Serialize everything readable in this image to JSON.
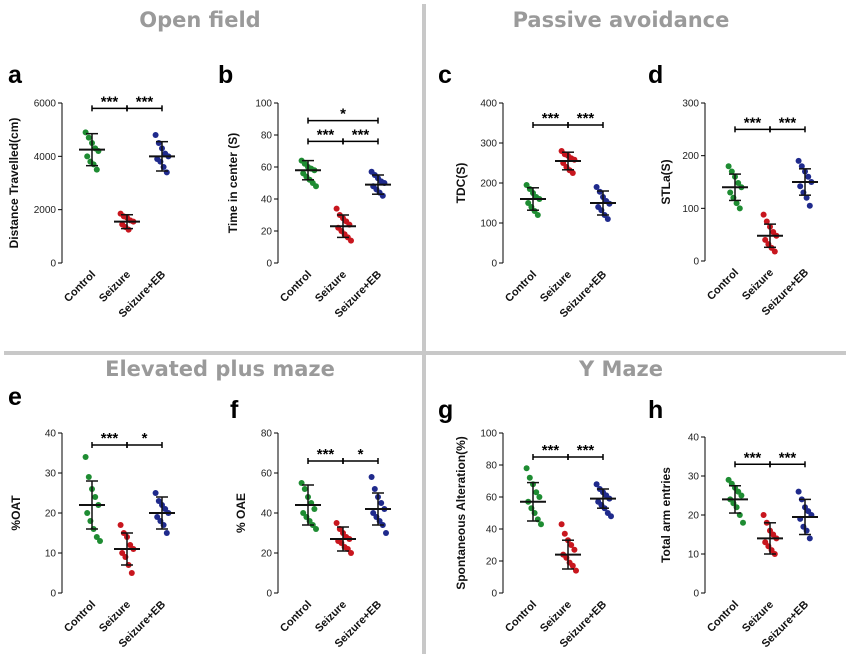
{
  "sections": [
    {
      "title": "Open field"
    },
    {
      "title": "Passive avoidance"
    },
    {
      "title": "Elevated plus maze"
    },
    {
      "title": "Y Maze"
    }
  ],
  "colors": {
    "Control": "#1e8c32",
    "Seizure": "#c8161e",
    "Seizure+EB": "#1f2a8c",
    "divider": "#c8c8c8"
  },
  "chart_data": [
    {
      "type": "scatter",
      "panel": "a",
      "ylabel": "Distance Travelled(cm)",
      "ylim": [
        0,
        6000
      ],
      "yticks": [
        0,
        2000,
        4000,
        6000
      ],
      "categories": [
        "Control",
        "Seizure",
        "Seizure+EB"
      ],
      "series": [
        {
          "name": "Control",
          "points": [
            4900,
            4700,
            4500,
            4300,
            4200,
            4000,
            3800,
            3700,
            3500
          ],
          "mean": 4250,
          "sd": 600
        },
        {
          "name": "Seizure",
          "points": [
            1850,
            1750,
            1700,
            1600,
            1550,
            1450,
            1350,
            1250
          ],
          "mean": 1550,
          "sd": 260
        },
        {
          "name": "Seizure+EB",
          "points": [
            4800,
            4500,
            4300,
            4100,
            4000,
            3900,
            3800,
            3600,
            3400
          ],
          "mean": 4000,
          "sd": 550
        }
      ],
      "significance": [
        {
          "from": 0,
          "to": 1,
          "label": "***",
          "y": 5800
        },
        {
          "from": 1,
          "to": 2,
          "label": "***",
          "y": 5800
        }
      ]
    },
    {
      "type": "scatter",
      "panel": "b",
      "ylabel": "Time in center (S)",
      "ylim": [
        0,
        100
      ],
      "yticks": [
        0,
        20,
        40,
        60,
        80,
        100
      ],
      "categories": [
        "Control",
        "Seizure",
        "Seizure+EB"
      ],
      "series": [
        {
          "name": "Control",
          "points": [
            64,
            62,
            60,
            59,
            58,
            56,
            54,
            52,
            50,
            48
          ],
          "mean": 58,
          "sd": 6
        },
        {
          "name": "Seizure",
          "points": [
            34,
            30,
            28,
            26,
            24,
            22,
            20,
            18,
            16,
            14
          ],
          "mean": 23,
          "sd": 7
        },
        {
          "name": "Seizure+EB",
          "points": [
            57,
            55,
            53,
            51,
            50,
            48,
            46,
            44,
            42
          ],
          "mean": 49,
          "sd": 6
        }
      ],
      "significance": [
        {
          "from": 0,
          "to": 1,
          "label": "***",
          "y": 76
        },
        {
          "from": 1,
          "to": 2,
          "label": "***",
          "y": 76
        },
        {
          "from": 0,
          "to": 2,
          "label": "*",
          "y": 89
        }
      ]
    },
    {
      "type": "scatter",
      "panel": "c",
      "ylabel": "TDC(S)",
      "ylim": [
        0,
        400
      ],
      "yticks": [
        0,
        100,
        200,
        300,
        400
      ],
      "categories": [
        "Control",
        "Seizure",
        "Seizure+EB"
      ],
      "series": [
        {
          "name": "Control",
          "points": [
            195,
            185,
            175,
            165,
            160,
            150,
            140,
            130,
            120
          ],
          "mean": 160,
          "sd": 28
        },
        {
          "name": "Seizure",
          "points": [
            280,
            272,
            268,
            262,
            258,
            250,
            240,
            232,
            225
          ],
          "mean": 255,
          "sd": 22
        },
        {
          "name": "Seizure+EB",
          "points": [
            190,
            178,
            165,
            155,
            148,
            140,
            132,
            120,
            110
          ],
          "mean": 150,
          "sd": 30
        }
      ],
      "significance": [
        {
          "from": 0,
          "to": 1,
          "label": "***",
          "y": 345
        },
        {
          "from": 1,
          "to": 2,
          "label": "***",
          "y": 345
        }
      ]
    },
    {
      "type": "scatter",
      "panel": "d",
      "ylabel": "STLa(S)",
      "ylim": [
        0,
        300
      ],
      "yticks": [
        0,
        100,
        200,
        300
      ],
      "categories": [
        "Control",
        "Seizure",
        "Seizure+EB"
      ],
      "series": [
        {
          "name": "Control",
          "points": [
            180,
            170,
            160,
            148,
            140,
            130,
            120,
            110,
            100
          ],
          "mean": 140,
          "sd": 25
        },
        {
          "name": "Seizure",
          "points": [
            88,
            75,
            65,
            55,
            48,
            40,
            32,
            25,
            18
          ],
          "mean": 48,
          "sd": 22
        },
        {
          "name": "Seizure+EB",
          "points": [
            190,
            180,
            170,
            160,
            150,
            142,
            130,
            120,
            105
          ],
          "mean": 150,
          "sd": 25
        }
      ],
      "significance": [
        {
          "from": 0,
          "to": 1,
          "label": "***",
          "y": 250
        },
        {
          "from": 1,
          "to": 2,
          "label": "***",
          "y": 250
        }
      ]
    },
    {
      "type": "scatter",
      "panel": "e",
      "ylabel": "%OAT",
      "ylim": [
        0,
        40
      ],
      "yticks": [
        0,
        10,
        20,
        30,
        40
      ],
      "categories": [
        "Control",
        "Seizure",
        "Seizure+EB"
      ],
      "series": [
        {
          "name": "Control",
          "points": [
            34,
            29,
            26,
            24,
            22,
            20,
            18,
            16,
            14,
            13
          ],
          "mean": 22,
          "sd": 6
        },
        {
          "name": "Seizure",
          "points": [
            17,
            15,
            14,
            12,
            11,
            10,
            9,
            7,
            5
          ],
          "mean": 11,
          "sd": 4
        },
        {
          "name": "Seizure+EB",
          "points": [
            25,
            23,
            22,
            21,
            20,
            19,
            18,
            17,
            15
          ],
          "mean": 20,
          "sd": 4
        }
      ],
      "significance": [
        {
          "from": 0,
          "to": 1,
          "label": "***",
          "y": 37
        },
        {
          "from": 1,
          "to": 2,
          "label": "*",
          "y": 37
        }
      ]
    },
    {
      "type": "scatter",
      "panel": "f",
      "ylabel": "% OAE",
      "ylim": [
        0,
        80
      ],
      "yticks": [
        0,
        20,
        40,
        60,
        80
      ],
      "categories": [
        "Control",
        "Seizure",
        "Seizure+EB"
      ],
      "series": [
        {
          "name": "Control",
          "points": [
            55,
            52,
            48,
            45,
            42,
            40,
            38,
            36,
            34,
            32
          ],
          "mean": 44,
          "sd": 10
        },
        {
          "name": "Seizure",
          "points": [
            35,
            32,
            30,
            28,
            27,
            26,
            25,
            23,
            22,
            20
          ],
          "mean": 27,
          "sd": 6
        },
        {
          "name": "Seizure+EB",
          "points": [
            58,
            52,
            48,
            45,
            42,
            40,
            38,
            36,
            34,
            30
          ],
          "mean": 42,
          "sd": 8
        }
      ],
      "significance": [
        {
          "from": 0,
          "to": 1,
          "label": "***",
          "y": 66
        },
        {
          "from": 1,
          "to": 2,
          "label": "*",
          "y": 66
        }
      ]
    },
    {
      "type": "scatter",
      "panel": "g",
      "ylabel": "Spontaneous Alteration(%)",
      "ylim": [
        0,
        100
      ],
      "yticks": [
        0,
        20,
        40,
        60,
        80,
        100
      ],
      "categories": [
        "Control",
        "Seizure",
        "Seizure+EB"
      ],
      "series": [
        {
          "name": "Control",
          "points": [
            78,
            72,
            68,
            63,
            60,
            57,
            53,
            50,
            46,
            43
          ],
          "mean": 57,
          "sd": 12
        },
        {
          "name": "Seizure",
          "points": [
            43,
            37,
            33,
            30,
            27,
            24,
            22,
            19,
            17,
            14
          ],
          "mean": 24,
          "sd": 9
        },
        {
          "name": "Seizure+EB",
          "points": [
            68,
            65,
            63,
            61,
            59,
            57,
            55,
            53,
            50,
            48
          ],
          "mean": 59,
          "sd": 6
        }
      ],
      "significance": [
        {
          "from": 0,
          "to": 1,
          "label": "***",
          "y": 85
        },
        {
          "from": 1,
          "to": 2,
          "label": "***",
          "y": 85
        }
      ]
    },
    {
      "type": "scatter",
      "panel": "h",
      "ylabel": "Total arm entries",
      "ylim": [
        0,
        40
      ],
      "yticks": [
        0,
        10,
        20,
        30,
        40
      ],
      "categories": [
        "Control",
        "Seizure",
        "Seizure+EB"
      ],
      "series": [
        {
          "name": "Control",
          "points": [
            29,
            28,
            27,
            26,
            25,
            24,
            23,
            22,
            20,
            18
          ],
          "mean": 24,
          "sd": 3.5
        },
        {
          "name": "Seizure",
          "points": [
            20,
            18,
            16,
            15,
            14,
            13,
            12,
            11,
            10
          ],
          "mean": 14,
          "sd": 4
        },
        {
          "name": "Seizure+EB",
          "points": [
            26,
            24,
            22,
            21,
            20,
            19,
            17,
            16,
            14
          ],
          "mean": 19.5,
          "sd": 4.5
        }
      ],
      "significance": [
        {
          "from": 0,
          "to": 1,
          "label": "***",
          "y": 33
        },
        {
          "from": 1,
          "to": 2,
          "label": "***",
          "y": 33
        }
      ]
    }
  ]
}
